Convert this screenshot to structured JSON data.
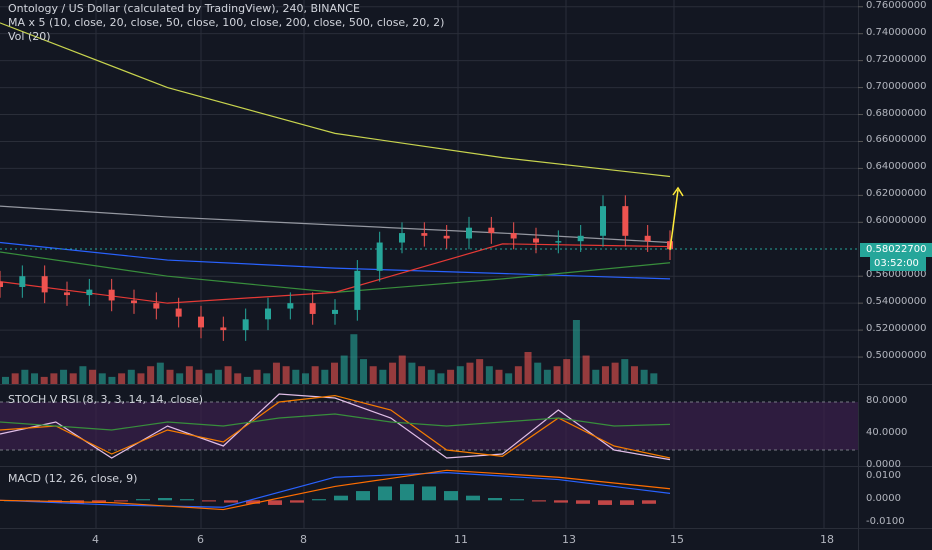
{
  "legend": {
    "title": "Ontology / US Dollar (calculated by TradingView), 240, BINANCE",
    "ma": "MA x 5 (10, close, 20, close, 50, close, 100, close, 200, close, 500, close, 20, 2)",
    "vol": "Vol (20)",
    "stoch": "STOCH V RSI (8, 3, 3, 14, 14, close)",
    "macd": "MACD (12, 26, close, 9)"
  },
  "price_tag": "0.58022700",
  "time_tag": "03:52:00",
  "colors": {
    "background": "#131722",
    "up": "#26a69a",
    "down": "#ef5350",
    "grid": "#2a2e39",
    "rsi_band": "#2e1a3a",
    "arrow": "#ffeb3b"
  },
  "chart_data": [
    {
      "type": "line",
      "panel": "price",
      "note": "candlestick price chart with moving averages",
      "y_ticks": [
        "0.76000000",
        "0.74000000",
        "0.72000000",
        "0.70000000",
        "0.68000000",
        "0.66000000",
        "0.64000000",
        "0.62000000",
        "0.60000000",
        "0.56000000",
        "0.54000000",
        "0.52000000",
        "0.50000000"
      ],
      "ylim": [
        0.48,
        0.765
      ],
      "x_ticks": [
        "4",
        "6",
        "8",
        "11",
        "13",
        "15",
        "18"
      ],
      "last_price": 0.580227,
      "series": [
        {
          "name": "close",
          "color": "#ef5350",
          "x": [
            0,
            4,
            8,
            12,
            16,
            20,
            24,
            28,
            32,
            36,
            40,
            44,
            48,
            52,
            56,
            60,
            64,
            68,
            72,
            76,
            80,
            84,
            88,
            92,
            96,
            100,
            104,
            108,
            112,
            116,
            120
          ],
          "values": [
            0.552,
            0.56,
            0.548,
            0.546,
            0.55,
            0.542,
            0.54,
            0.536,
            0.53,
            0.522,
            0.52,
            0.528,
            0.536,
            0.54,
            0.532,
            0.535,
            0.564,
            0.585,
            0.592,
            0.59,
            0.588,
            0.596,
            0.592,
            0.588,
            0.585,
            0.586,
            0.59,
            0.612,
            0.59,
            0.586,
            0.58
          ]
        },
        {
          "name": "ma_500",
          "color": "#c8d44e",
          "x": [
            0,
            30,
            60,
            90,
            120
          ],
          "values": [
            0.748,
            0.7,
            0.666,
            0.648,
            0.634
          ]
        },
        {
          "name": "ma_200",
          "color": "#9598a1",
          "x": [
            0,
            30,
            60,
            90,
            120
          ],
          "values": [
            0.612,
            0.604,
            0.598,
            0.592,
            0.585
          ]
        },
        {
          "name": "ma_100",
          "color": "#2962ff",
          "x": [
            0,
            30,
            60,
            90,
            120
          ],
          "values": [
            0.585,
            0.572,
            0.566,
            0.562,
            0.558
          ]
        },
        {
          "name": "ma_50",
          "color": "#388e3c",
          "x": [
            0,
            30,
            60,
            90,
            120
          ],
          "values": [
            0.578,
            0.56,
            0.548,
            0.558,
            0.57
          ]
        },
        {
          "name": "ma_20",
          "color": "#e53935",
          "x": [
            0,
            30,
            60,
            90,
            120
          ],
          "values": [
            0.556,
            0.54,
            0.548,
            0.584,
            0.582
          ]
        }
      ]
    },
    {
      "type": "bar",
      "panel": "volume",
      "note": "relative volume bars",
      "values": [
        2,
        3,
        4,
        3,
        2,
        3,
        4,
        3,
        5,
        4,
        3,
        2,
        3,
        4,
        3,
        5,
        6,
        4,
        3,
        5,
        4,
        3,
        4,
        5,
        3,
        2,
        4,
        3,
        6,
        5,
        4,
        3,
        5,
        4,
        6,
        8,
        14,
        7,
        5,
        4,
        6,
        8,
        6,
        5,
        4,
        3,
        4,
        5,
        6,
        7,
        5,
        4,
        3,
        5,
        9,
        6,
        4,
        5,
        7,
        18,
        8,
        4,
        5,
        6,
        7,
        5,
        4,
        3
      ],
      "up": [
        1,
        0,
        1,
        1,
        0,
        0,
        1,
        0,
        1,
        0,
        1,
        1,
        0,
        1,
        0,
        0,
        1,
        0,
        1,
        0,
        0,
        1,
        1,
        0,
        0,
        1,
        0,
        1,
        0,
        0,
        1,
        1,
        0,
        1,
        0,
        1,
        1,
        1,
        0,
        1,
        0,
        0,
        1,
        0,
        1,
        1,
        0,
        1,
        0,
        0,
        1,
        0,
        1,
        0,
        0,
        1,
        1,
        0,
        0,
        1,
        0,
        1,
        0,
        0,
        1,
        0,
        1,
        1
      ]
    },
    {
      "type": "line",
      "panel": "stoch_rsi",
      "y_ticks": [
        "80.0000",
        "40.0000",
        "0.0000"
      ],
      "ylim": [
        0,
        100
      ],
      "series": [
        {
          "name": "K",
          "color": "#e1bee7",
          "x": [
            0,
            10,
            20,
            30,
            40,
            50,
            60,
            70,
            80,
            90,
            100,
            110,
            120
          ],
          "values": [
            40,
            55,
            10,
            50,
            25,
            90,
            85,
            60,
            10,
            15,
            70,
            20,
            8
          ]
        },
        {
          "name": "D",
          "color": "#f57c00",
          "x": [
            0,
            10,
            20,
            30,
            40,
            50,
            60,
            70,
            80,
            90,
            100,
            110,
            120
          ],
          "values": [
            45,
            50,
            15,
            45,
            30,
            80,
            88,
            70,
            20,
            12,
            60,
            25,
            10
          ]
        },
        {
          "name": "RSI",
          "color": "#388e3c",
          "x": [
            0,
            10,
            20,
            30,
            40,
            50,
            60,
            70,
            80,
            90,
            100,
            110,
            120
          ],
          "values": [
            55,
            50,
            45,
            55,
            50,
            60,
            65,
            55,
            50,
            55,
            60,
            50,
            52
          ]
        }
      ]
    },
    {
      "type": "bar",
      "panel": "macd",
      "y_ticks": [
        "0.0100",
        "0.0000",
        "-0.0100"
      ],
      "ylim": [
        -0.012,
        0.014
      ],
      "histogram": [
        0.0,
        -0.0005,
        -0.001,
        -0.0015,
        -0.001,
        -0.0005,
        0.0005,
        0.001,
        0.0005,
        -0.0005,
        -0.001,
        -0.0015,
        -0.002,
        -0.001,
        0.0005,
        0.002,
        0.004,
        0.006,
        0.007,
        0.006,
        0.004,
        0.002,
        0.001,
        0.0005,
        -0.0005,
        -0.001,
        -0.0015,
        -0.002,
        -0.002,
        -0.0015
      ],
      "series": [
        {
          "name": "MACD",
          "color": "#2962ff",
          "x": [
            0,
            20,
            40,
            60,
            80,
            100,
            120
          ],
          "values": [
            0.0,
            -0.002,
            -0.003,
            0.01,
            0.012,
            0.009,
            0.003
          ]
        },
        {
          "name": "Signal",
          "color": "#ff6d00",
          "x": [
            0,
            20,
            40,
            60,
            80,
            100,
            120
          ],
          "values": [
            0.0,
            -0.001,
            -0.004,
            0.006,
            0.013,
            0.01,
            0.005
          ]
        }
      ]
    }
  ]
}
